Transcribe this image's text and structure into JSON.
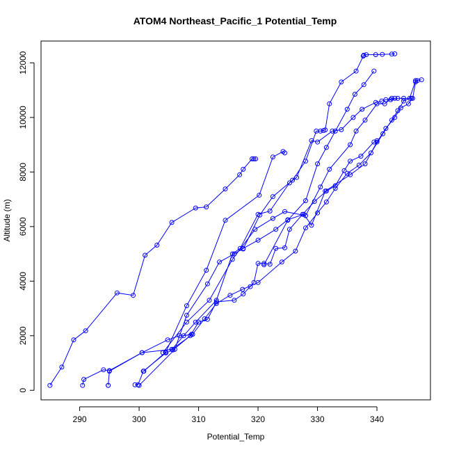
{
  "chart_data": {
    "type": "line",
    "title": "ATOM4 Northeast_Pacific_1 Potential_Temp",
    "xlabel": "Potential_Temp",
    "ylabel": "Altitude (m)",
    "xlim": [
      283.5,
      349.0
    ],
    "ylim": [
      -350,
      12800
    ],
    "x_ticks": [
      290,
      300,
      310,
      320,
      330,
      340
    ],
    "y_ticks": [
      0,
      2000,
      4000,
      6000,
      8000,
      10000,
      12000
    ],
    "series_style": {
      "color": "#0000ff",
      "marker": "open-circle"
    },
    "series": [
      {
        "points": [
          [
            285,
            180
          ],
          [
            287,
            850
          ],
          [
            289,
            1850
          ],
          [
            291,
            2180
          ],
          [
            296.3,
            3570
          ],
          [
            299,
            3480
          ],
          [
            301,
            4950
          ],
          [
            303,
            5320
          ],
          [
            305.5,
            6150
          ],
          [
            309.5,
            6680
          ],
          [
            311.3,
            6720
          ],
          [
            314.5,
            7380
          ],
          [
            316.9,
            7900
          ],
          [
            317.5,
            8100
          ],
          [
            319,
            8480
          ],
          [
            319.3,
            8480
          ],
          [
            319.6,
            8480
          ]
        ]
      },
      {
        "points": [
          [
            290.5,
            180
          ],
          [
            290.7,
            400
          ],
          [
            294,
            750
          ],
          [
            295,
            720
          ],
          [
            300.5,
            1380
          ],
          [
            304.8,
            1850
          ],
          [
            306.8,
            2000
          ],
          [
            307.5,
            2000
          ],
          [
            308.8,
            2050
          ]
        ]
      },
      {
        "points": [
          [
            299.3,
            200
          ],
          [
            299.8,
            200
          ],
          [
            300.7,
            700
          ],
          [
            304.5,
            1370
          ],
          [
            305.7,
            1480
          ],
          [
            308.6,
            2000
          ],
          [
            310,
            2500
          ],
          [
            311.5,
            2600
          ],
          [
            313,
            3240
          ],
          [
            316,
            3300
          ],
          [
            317.5,
            3530
          ],
          [
            318.7,
            3800
          ],
          [
            319.3,
            3950
          ],
          [
            320,
            4650
          ],
          [
            321,
            4650
          ],
          [
            322,
            4620
          ],
          [
            323,
            5200
          ],
          [
            324.5,
            5220
          ],
          [
            325.3,
            5900
          ],
          [
            327.5,
            6450
          ],
          [
            329.5,
            6920
          ],
          [
            331.5,
            7300
          ],
          [
            333,
            7500
          ],
          [
            334.5,
            8050
          ],
          [
            335.5,
            8400
          ],
          [
            337.3,
            8580
          ],
          [
            339.5,
            9100
          ],
          [
            340,
            9150
          ]
        ]
      },
      {
        "points": [
          [
            294.8,
            180
          ],
          [
            294.8,
            180
          ],
          [
            295,
            700
          ],
          [
            300.5,
            1380
          ],
          [
            305.5,
            1500
          ],
          [
            309,
            2050
          ],
          [
            311,
            2620
          ],
          [
            313,
            3180
          ],
          [
            315.3,
            3480
          ],
          [
            317.4,
            3700
          ],
          [
            320,
            3950
          ],
          [
            324,
            4700
          ],
          [
            326.3,
            5100
          ],
          [
            328,
            5950
          ],
          [
            330,
            6500
          ],
          [
            331.5,
            6900
          ],
          [
            333,
            7400
          ],
          [
            335,
            7950
          ],
          [
            337,
            8250
          ],
          [
            339,
            8700
          ],
          [
            341,
            9400
          ],
          [
            342.5,
            9900
          ],
          [
            343.5,
            10250
          ],
          [
            344.5,
            10600
          ],
          [
            345.5,
            10700
          ],
          [
            346.5,
            11350
          ],
          [
            347.5,
            11380
          ]
        ]
      },
      {
        "points": [
          [
            300,
            180
          ],
          [
            306,
            1500
          ],
          [
            308,
            2750
          ],
          [
            311.5,
            3900
          ],
          [
            313.5,
            4700
          ],
          [
            316,
            5000
          ],
          [
            317.5,
            5200
          ],
          [
            320,
            5500
          ],
          [
            323,
            5900
          ],
          [
            325,
            6250
          ],
          [
            327.7,
            6450
          ],
          [
            329,
            6050
          ],
          [
            331.3,
            7300
          ],
          [
            335.5,
            7900
          ],
          [
            338,
            8300
          ],
          [
            340,
            9100
          ],
          [
            341.5,
            9600
          ],
          [
            343,
            10000
          ],
          [
            344,
            10350
          ],
          [
            345.3,
            10500
          ],
          [
            346,
            10700
          ],
          [
            346.5,
            11300
          ],
          [
            346.8,
            11350
          ]
        ]
      },
      {
        "points": [
          [
            300.8,
            700
          ],
          [
            304.5,
            1400
          ],
          [
            308,
            3100
          ],
          [
            311.3,
            4400
          ],
          [
            314.5,
            6230
          ],
          [
            320.2,
            7150
          ],
          [
            322.5,
            8550
          ],
          [
            324.2,
            8750
          ],
          [
            324.5,
            8700
          ]
        ]
      },
      {
        "points": [
          [
            305.5,
            1500
          ],
          [
            309.5,
            2500
          ],
          [
            313,
            3300
          ],
          [
            315.7,
            5000
          ],
          [
            317,
            5200
          ],
          [
            320,
            6450
          ],
          [
            322,
            6570
          ],
          [
            325.3,
            7600
          ],
          [
            326.5,
            7800
          ],
          [
            329,
            9150
          ],
          [
            330,
            9100
          ],
          [
            332.5,
            9500
          ],
          [
            334,
            9550
          ],
          [
            336,
            10000
          ],
          [
            337.5,
            10300
          ],
          [
            339.8,
            10550
          ],
          [
            340.8,
            10600
          ],
          [
            341.5,
            10650
          ],
          [
            342.3,
            10650
          ],
          [
            343.5,
            10700
          ],
          [
            344.5,
            10700
          ],
          [
            345.8,
            10700
          ]
        ]
      },
      {
        "points": [
          [
            304,
            1380
          ],
          [
            308,
            2500
          ],
          [
            311.8,
            3300
          ],
          [
            315.7,
            4800
          ],
          [
            319.5,
            5900
          ],
          [
            322.5,
            6300
          ],
          [
            324.5,
            6550
          ],
          [
            328,
            6400
          ],
          [
            330.5,
            7450
          ],
          [
            332,
            8100
          ],
          [
            335.5,
            9000
          ],
          [
            336.5,
            9500
          ],
          [
            338,
            9900
          ],
          [
            340,
            10500
          ],
          [
            341.3,
            10500
          ],
          [
            342.5,
            10700
          ],
          [
            343,
            10700
          ]
        ]
      },
      {
        "points": [
          [
            317.5,
            5180
          ],
          [
            320.3,
            6420
          ],
          [
            322.5,
            7100
          ],
          [
            325.8,
            7700
          ],
          [
            328,
            8400
          ],
          [
            329.8,
            9500
          ],
          [
            330.5,
            9500
          ],
          [
            331,
            9520
          ],
          [
            331.3,
            9540
          ],
          [
            332,
            10500
          ],
          [
            334,
            11300
          ],
          [
            336.5,
            11700
          ],
          [
            337.7,
            12250
          ],
          [
            337.8,
            12280
          ],
          [
            338.2,
            12300
          ],
          [
            339.8,
            12300
          ],
          [
            340.9,
            12310
          ],
          [
            342.5,
            12320
          ],
          [
            343,
            12330
          ]
        ]
      },
      {
        "points": [
          [
            321,
            4600
          ],
          [
            325,
            6230
          ],
          [
            328,
            6950
          ],
          [
            330,
            8300
          ],
          [
            331.5,
            8900
          ],
          [
            333,
            9500
          ],
          [
            335,
            10300
          ],
          [
            336.3,
            10850
          ],
          [
            337.8,
            11200
          ],
          [
            339.5,
            11700
          ]
        ]
      }
    ]
  }
}
